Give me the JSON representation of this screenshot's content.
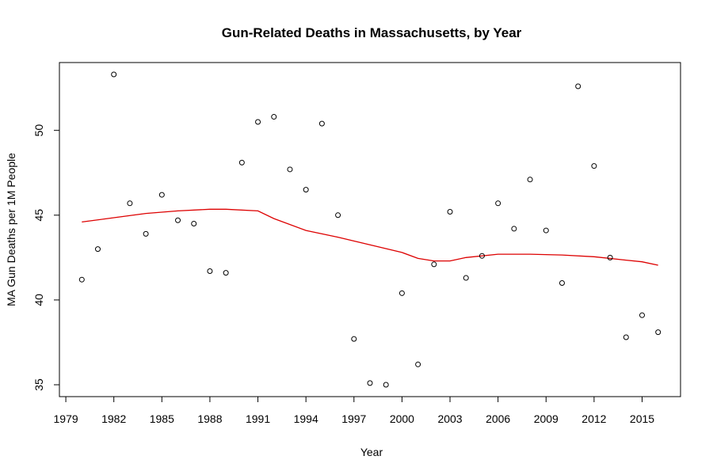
{
  "chart_data": {
    "type": "scatter",
    "title": "Gun-Related Deaths in Massachusetts, by Year",
    "xlabel": "Year",
    "ylabel": "MA Gun Deaths per 1M People",
    "xlim": [
      1978.6,
      2017.4
    ],
    "ylim": [
      34.3,
      54.0
    ],
    "x_ticks": [
      1979,
      1982,
      1985,
      1988,
      1991,
      1994,
      1997,
      2000,
      2003,
      2006,
      2009,
      2012,
      2015
    ],
    "y_ticks": [
      35,
      40,
      45,
      50
    ],
    "grid": false,
    "legend": "none",
    "points": [
      {
        "x": 1980,
        "y": 41.2
      },
      {
        "x": 1981,
        "y": 43.0
      },
      {
        "x": 1982,
        "y": 53.3
      },
      {
        "x": 1983,
        "y": 45.7
      },
      {
        "x": 1984,
        "y": 43.9
      },
      {
        "x": 1985,
        "y": 46.2
      },
      {
        "x": 1986,
        "y": 44.7
      },
      {
        "x": 1987,
        "y": 44.5
      },
      {
        "x": 1988,
        "y": 41.7
      },
      {
        "x": 1989,
        "y": 41.6
      },
      {
        "x": 1990,
        "y": 48.1
      },
      {
        "x": 1991,
        "y": 50.5
      },
      {
        "x": 1992,
        "y": 50.8
      },
      {
        "x": 1993,
        "y": 47.7
      },
      {
        "x": 1994,
        "y": 46.5
      },
      {
        "x": 1995,
        "y": 50.4
      },
      {
        "x": 1996,
        "y": 45.0
      },
      {
        "x": 1997,
        "y": 37.7
      },
      {
        "x": 1998,
        "y": 35.1
      },
      {
        "x": 1999,
        "y": 35.0
      },
      {
        "x": 2000,
        "y": 40.4
      },
      {
        "x": 2001,
        "y": 36.2
      },
      {
        "x": 2002,
        "y": 42.1
      },
      {
        "x": 2003,
        "y": 45.2
      },
      {
        "x": 2004,
        "y": 41.3
      },
      {
        "x": 2005,
        "y": 42.6
      },
      {
        "x": 2006,
        "y": 45.7
      },
      {
        "x": 2007,
        "y": 44.2
      },
      {
        "x": 2008,
        "y": 47.1
      },
      {
        "x": 2009,
        "y": 44.1
      },
      {
        "x": 2010,
        "y": 41.0
      },
      {
        "x": 2011,
        "y": 52.6
      },
      {
        "x": 2012,
        "y": 47.9
      },
      {
        "x": 2013,
        "y": 42.5
      },
      {
        "x": 2014,
        "y": 37.8
      },
      {
        "x": 2015,
        "y": 39.1
      },
      {
        "x": 2016,
        "y": 38.1
      }
    ],
    "smooth_line": {
      "color": "#dd0000",
      "points": [
        {
          "x": 1980,
          "y": 44.6
        },
        {
          "x": 1982,
          "y": 44.85
        },
        {
          "x": 1984,
          "y": 45.1
        },
        {
          "x": 1986,
          "y": 45.25
        },
        {
          "x": 1988,
          "y": 45.35
        },
        {
          "x": 1989,
          "y": 45.35
        },
        {
          "x": 1991,
          "y": 45.25
        },
        {
          "x": 1992,
          "y": 44.8
        },
        {
          "x": 1994,
          "y": 44.1
        },
        {
          "x": 1996,
          "y": 43.7
        },
        {
          "x": 1998,
          "y": 43.25
        },
        {
          "x": 2000,
          "y": 42.8
        },
        {
          "x": 2001,
          "y": 42.45
        },
        {
          "x": 2002,
          "y": 42.3
        },
        {
          "x": 2003,
          "y": 42.3
        },
        {
          "x": 2004,
          "y": 42.5
        },
        {
          "x": 2006,
          "y": 42.7
        },
        {
          "x": 2008,
          "y": 42.7
        },
        {
          "x": 2010,
          "y": 42.65
        },
        {
          "x": 2012,
          "y": 42.55
        },
        {
          "x": 2014,
          "y": 42.35
        },
        {
          "x": 2015,
          "y": 42.25
        },
        {
          "x": 2016,
          "y": 42.05
        }
      ]
    },
    "point_color": "#000000"
  }
}
